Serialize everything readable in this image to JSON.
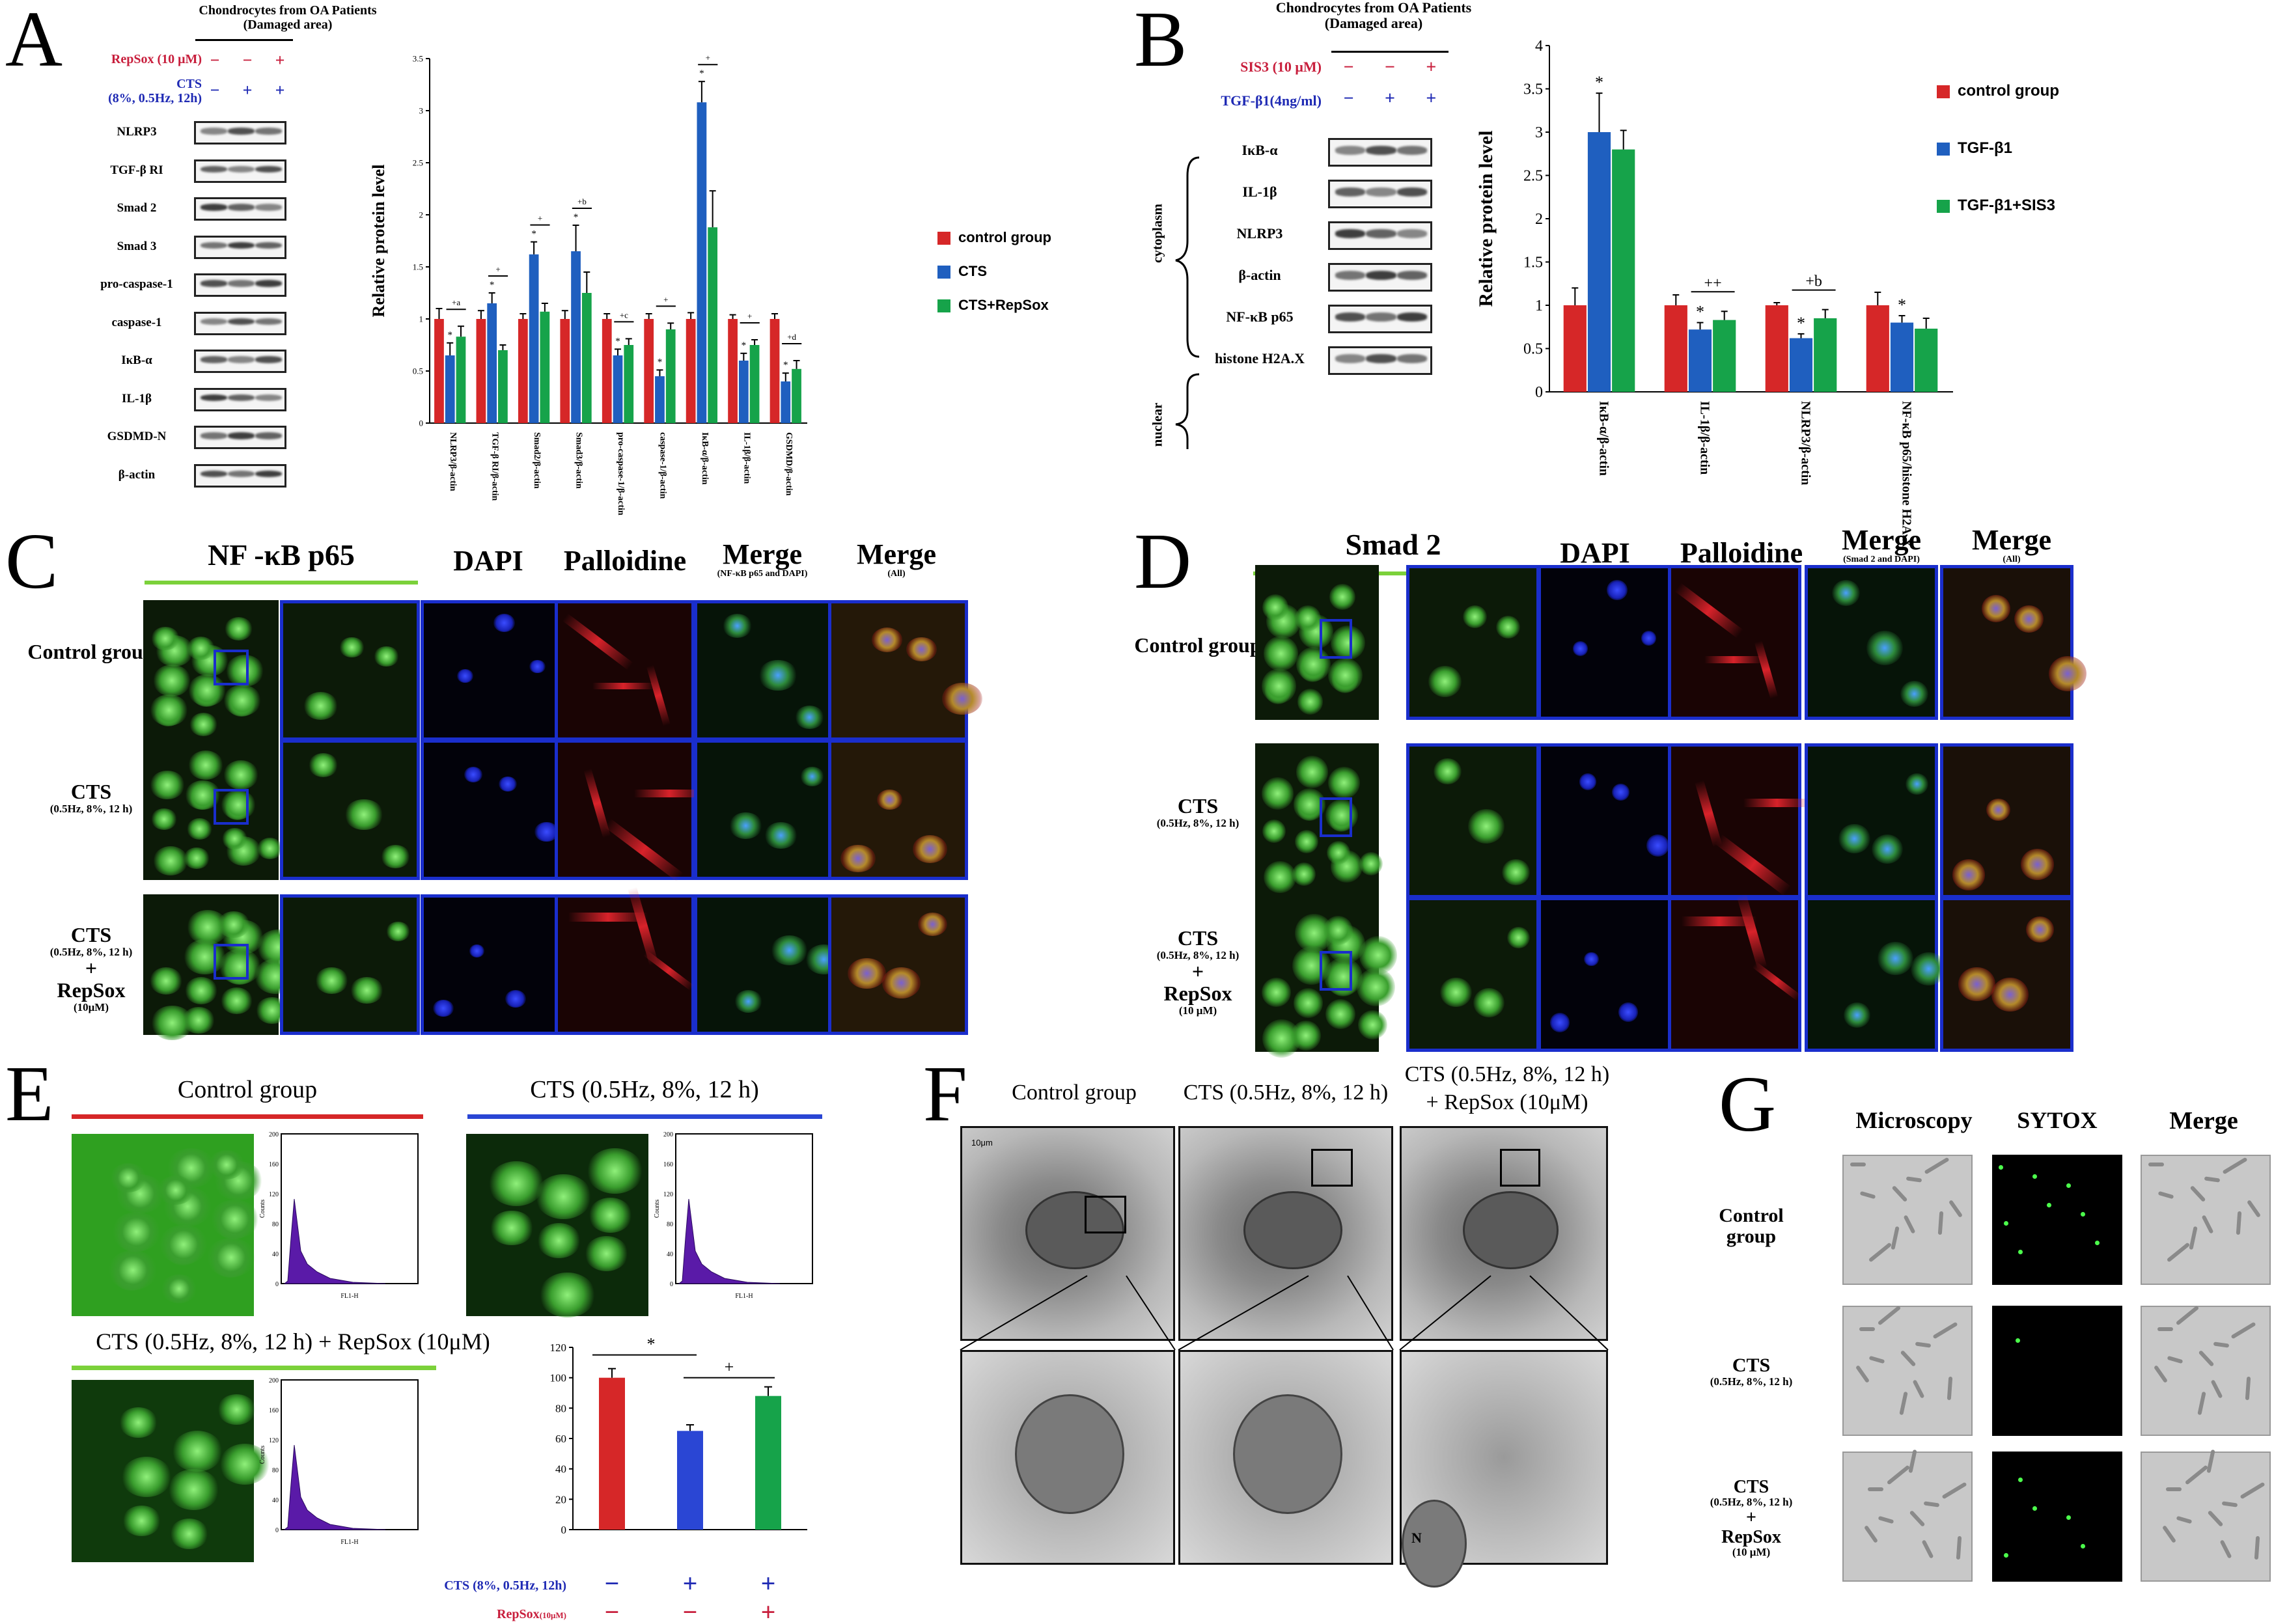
{
  "panels": {
    "A": "A",
    "B": "B",
    "C": "C",
    "D": "D",
    "E": "E",
    "F": "F",
    "G": "G"
  },
  "colors": {
    "control": "#d62728",
    "treat": "#1f5fbf",
    "combo": "#16a34a",
    "blueLabel": "#1f2ab4",
    "redLabel": "#c81e3c",
    "border": "#1a2ecc",
    "green_rule": "#7bd13a",
    "red_rule": "#d62728",
    "blue_rule": "#2a46d4",
    "histogram": "#5a1aa8"
  },
  "panelA": {
    "header_line1": "Chondrocytes from OA Patients",
    "header_line2": "(Damaged area)",
    "row1_label": "RepSox (10 μM)",
    "row1_signs": [
      "−",
      "−",
      "+"
    ],
    "row2_label": "CTS",
    "row2_label_sub": "(8%, 0.5Hz, 12h)",
    "row2_signs": [
      "−",
      "+",
      "+"
    ],
    "blots": [
      "NLRP3",
      "TGF-β RI",
      "Smad 2",
      "Smad 3",
      "pro-caspase-1",
      "caspase-1",
      "IκB-α",
      "IL-1β",
      "GSDMD-N",
      "β-actin"
    ],
    "legend": [
      "control group",
      "CTS",
      "CTS+RepSox"
    ]
  },
  "panelB": {
    "header_line1": "Chondrocytes from OA Patients",
    "header_line2": "(Damaged area)",
    "row1_label": "SIS3 (10 μM)",
    "row1_signs": [
      "−",
      "−",
      "+"
    ],
    "row2_label": "TGF-β1(4ng/ml)",
    "row2_signs": [
      "−",
      "+",
      "+"
    ],
    "group_cytoplasm": "cytoplasm",
    "group_nuclear": "nuclear",
    "blots": [
      "IκB-α",
      "IL-1β",
      "NLRP3",
      "β-actin",
      "NF-κB p65",
      "histone H2A.X"
    ],
    "legend": [
      "control group",
      "TGF-β1",
      "TGF-β1+SIS3"
    ]
  },
  "chart_data": [
    {
      "type": "bar",
      "panel": "A",
      "ylabel": "Relative protein level",
      "ylim": [
        0,
        3.5
      ],
      "yticks": [
        "0",
        "0.5",
        "1",
        "1.5",
        "2",
        "2.5",
        "3",
        "3.5"
      ],
      "categories": [
        "NLRP3/β-actin",
        "TGF-β RI/β-actin",
        "Smad2/β-actin",
        "Smad3/β-actin",
        "pro-caspase-1/β-actin",
        "caspase-1/β-actin",
        "IκB-α/β-actin",
        "IL-1β/β-actin",
        "GSDMD/β-actin"
      ],
      "series": [
        {
          "name": "control group",
          "values": [
            1,
            1,
            1,
            1,
            1,
            1,
            1,
            1,
            1
          ],
          "errors": [
            0.1,
            0.08,
            0.05,
            0.08,
            0.05,
            0.05,
            0.06,
            0.04,
            0.05
          ]
        },
        {
          "name": "CTS",
          "values": [
            0.65,
            1.15,
            1.62,
            1.65,
            0.65,
            0.45,
            3.08,
            0.6,
            0.4
          ],
          "errors": [
            0.12,
            0.1,
            0.12,
            0.25,
            0.06,
            0.06,
            0.2,
            0.07,
            0.08
          ]
        },
        {
          "name": "CTS+RepSox",
          "values": [
            0.83,
            0.7,
            1.07,
            1.25,
            0.75,
            0.9,
            1.88,
            0.75,
            0.52
          ],
          "errors": [
            0.1,
            0.05,
            0.08,
            0.2,
            0.06,
            0.06,
            0.35,
            0.05,
            0.08
          ]
        }
      ],
      "annotations": [
        "*",
        "*",
        "*",
        "*",
        "*",
        "*",
        "*",
        "*",
        "*"
      ],
      "sig_marks": [
        "+a",
        "+",
        "+",
        "+b",
        "+c",
        "+",
        "+",
        "+",
        "+d"
      ]
    },
    {
      "type": "bar",
      "panel": "B",
      "ylabel": "Relative protein level",
      "ylim": [
        0,
        4
      ],
      "yticks": [
        "0",
        "0.5",
        "1",
        "1.5",
        "2",
        "2.5",
        "3",
        "3.5",
        "4"
      ],
      "categories": [
        "IκB-α/β-actin",
        "IL-1β/β-actin",
        "NLRP3/β-actin",
        "NF-κB p65/histone H2A.X"
      ],
      "series": [
        {
          "name": "control group",
          "values": [
            1,
            1,
            1,
            1
          ],
          "errors": [
            0.2,
            0.12,
            0.03,
            0.15
          ]
        },
        {
          "name": "TGF-β1",
          "values": [
            3.0,
            0.72,
            0.62,
            0.8
          ],
          "errors": [
            0.45,
            0.08,
            0.05,
            0.08
          ]
        },
        {
          "name": "TGF-β1+SIS3",
          "values": [
            2.8,
            0.83,
            0.85,
            0.73
          ],
          "errors": [
            0.22,
            0.1,
            0.1,
            0.12
          ]
        }
      ],
      "annotations": [
        "*",
        "*",
        "*",
        "*"
      ],
      "sig_marks": [
        "",
        "++",
        "+b",
        ""
      ]
    },
    {
      "type": "bar",
      "panel": "E",
      "ylim": [
        0,
        120
      ],
      "yticks": [
        "0",
        "20",
        "40",
        "60",
        "80",
        "100",
        "120"
      ],
      "categories": [
        "control",
        "CTS",
        "CTS+RepSox"
      ],
      "values": [
        100,
        65,
        88
      ],
      "errors": [
        6,
        4,
        6
      ],
      "annotations": [
        "*",
        "+"
      ],
      "row1_label": "CTS (8%, 0.5Hz, 12h)",
      "row1_signs": [
        "−",
        "+",
        "+"
      ],
      "row2_label": "RepSox",
      "row2_label_sub": "(10μM)",
      "row2_signs": [
        "−",
        "−",
        "+"
      ]
    }
  ],
  "panelC": {
    "cols": [
      "NF -κB p65",
      "DAPI",
      "Palloidine",
      "Merge",
      "Merge"
    ],
    "merge_sub": [
      "(NF-κB p65 and DAPI)",
      "(All)"
    ],
    "rows": [
      {
        "title": "Control group",
        "sub": "",
        "extra": ""
      },
      {
        "title": "CTS",
        "sub": "(0.5Hz, 8%, 12 h)",
        "extra": ""
      },
      {
        "title": "CTS",
        "sub": "(0.5Hz, 8%, 12 h)",
        "extra": "+",
        "extra2": "RepSox",
        "extra3": "(10μM)"
      }
    ]
  },
  "panelD": {
    "cols": [
      "Smad 2",
      "DAPI",
      "Palloidine",
      "Merge",
      "Merge"
    ],
    "merge_sub": [
      "(Smad 2 and DAPI)",
      "(All)"
    ],
    "rows": [
      {
        "title": "Control group",
        "sub": ""
      },
      {
        "title": "CTS",
        "sub": "(0.5Hz, 8%, 12 h)"
      },
      {
        "title": "CTS",
        "sub": "(0.5Hz, 8%, 12 h)",
        "extra": "+",
        "extra2": "RepSox",
        "extra3": "(10 μM)"
      }
    ]
  },
  "panelE": {
    "titles": [
      "Control group",
      "CTS (0.5Hz, 8%, 12 h)",
      "CTS (0.5Hz, 8%, 12 h) + RepSox (10μM)"
    ],
    "hist_xlabel": "FL1-H",
    "hist_ylabel": "Counts",
    "hist_yticks": [
      "0",
      "40",
      "80",
      "120",
      "160",
      "200"
    ]
  },
  "panelF": {
    "titles": [
      "Control group",
      "CTS (0.5Hz, 8%, 12 h)",
      "CTS (0.5Hz, 8%, 12 h)",
      "+ RepSox (10μM)"
    ],
    "scale": "10μm",
    "nucleus": "N"
  },
  "panelG": {
    "cols": [
      "Microscopy",
      "SYTOX",
      "Merge"
    ],
    "rows": [
      {
        "title": "Control",
        "title2": "group",
        "sub": ""
      },
      {
        "title": "CTS",
        "title2": "",
        "sub": "(0.5Hz, 8%, 12 h)"
      },
      {
        "title": "CTS",
        "sub": "(0.5Hz, 8%, 12 h)",
        "extra": "+",
        "extra2": "RepSox",
        "extra3": "(10 μM)"
      }
    ]
  }
}
